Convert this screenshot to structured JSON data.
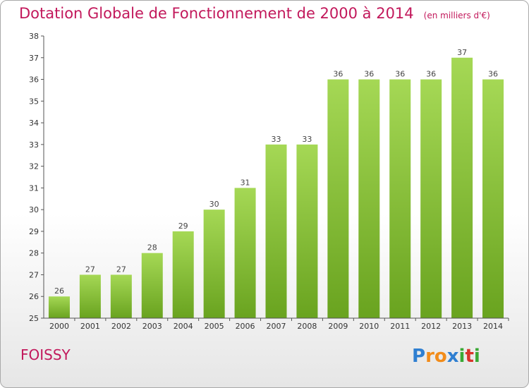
{
  "title": "Dotation Globale de Fonctionnement de 2000 à 2014",
  "unit": "(en milliers d'€)",
  "commune": "FOISSY",
  "logo": {
    "letters": [
      "P",
      "r",
      "o",
      "x",
      "i",
      "t",
      "i"
    ],
    "colors": [
      "#2f7fd1",
      "#f28c1a",
      "#f28c1a",
      "#2f7fd1",
      "#3aa935",
      "#d9332a",
      "#3aa935"
    ]
  },
  "colors": {
    "bar_light": "#a5d855",
    "bar_dark": "#69a31f",
    "title": "#c2185b"
  },
  "chart_data": {
    "type": "bar",
    "categories": [
      "2000",
      "2001",
      "2002",
      "2003",
      "2004",
      "2005",
      "2006",
      "2007",
      "2008",
      "2009",
      "2010",
      "2011",
      "2012",
      "2013",
      "2014"
    ],
    "values": [
      26,
      27,
      27,
      28,
      29,
      30,
      31,
      33,
      33,
      36,
      36,
      36,
      36,
      37,
      36
    ],
    "ylim": [
      25,
      38
    ],
    "yticks": [
      25,
      26,
      27,
      28,
      29,
      30,
      31,
      32,
      33,
      34,
      35,
      36,
      37,
      38
    ],
    "grid": false
  }
}
